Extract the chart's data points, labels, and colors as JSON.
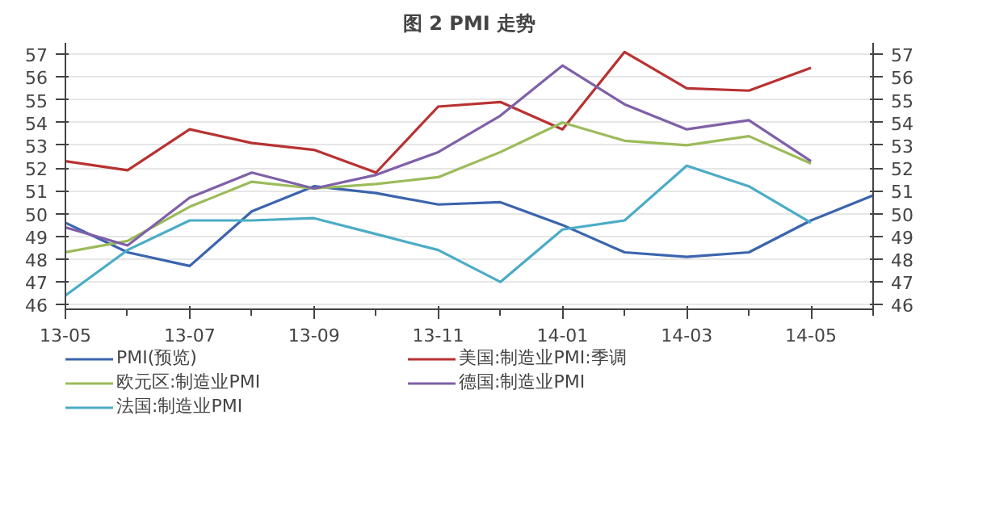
{
  "chart_data": {
    "type": "line",
    "title": "图 2 PMI 走势",
    "categories": [
      "13-05",
      null,
      "13-07",
      null,
      "13-09",
      null,
      "13-11",
      null,
      "14-01",
      null,
      "14-03",
      null,
      "14-05",
      null
    ],
    "ylim": [
      45.8,
      57.5
    ],
    "yticks": [
      46,
      47,
      48,
      49,
      50,
      51,
      52,
      53,
      54,
      55,
      56,
      57
    ],
    "y2lim": [
      45.8,
      57.5
    ],
    "y2ticks": [
      46,
      47,
      48,
      49,
      50,
      51,
      52,
      53,
      54,
      55,
      56,
      57
    ],
    "grid": "y",
    "legend": "bottom",
    "series": [
      {
        "name": "PMI(预览)",
        "color": "#3b64ad",
        "values": [
          49.6,
          48.3,
          47.7,
          50.1,
          51.2,
          50.9,
          50.4,
          50.5,
          49.5,
          48.3,
          48.1,
          48.3,
          49.7,
          50.8
        ]
      },
      {
        "name": "美国:制造业PMI:季调",
        "color": "#b83232",
        "values": [
          52.3,
          51.9,
          53.7,
          53.1,
          52.8,
          51.8,
          54.7,
          54.9,
          53.7,
          57.1,
          55.5,
          55.4,
          56.4,
          null
        ]
      },
      {
        "name": "欧元区:制造业PMI",
        "color": "#9bbb59",
        "values": [
          48.3,
          48.8,
          50.3,
          51.4,
          51.1,
          51.3,
          51.6,
          52.7,
          54.0,
          53.2,
          53.0,
          53.4,
          52.2,
          null
        ]
      },
      {
        "name": "德国:制造业PMI",
        "color": "#7f60a8",
        "values": [
          49.4,
          48.6,
          50.7,
          51.8,
          51.1,
          51.7,
          52.7,
          54.3,
          56.5,
          54.8,
          53.7,
          54.1,
          52.3,
          null
        ]
      },
      {
        "name": "法国:制造业PMI",
        "color": "#4bacc6",
        "values": [
          46.4,
          48.4,
          49.7,
          49.7,
          49.8,
          49.1,
          48.4,
          47.0,
          49.3,
          49.7,
          52.1,
          51.2,
          49.6,
          null
        ]
      }
    ]
  }
}
